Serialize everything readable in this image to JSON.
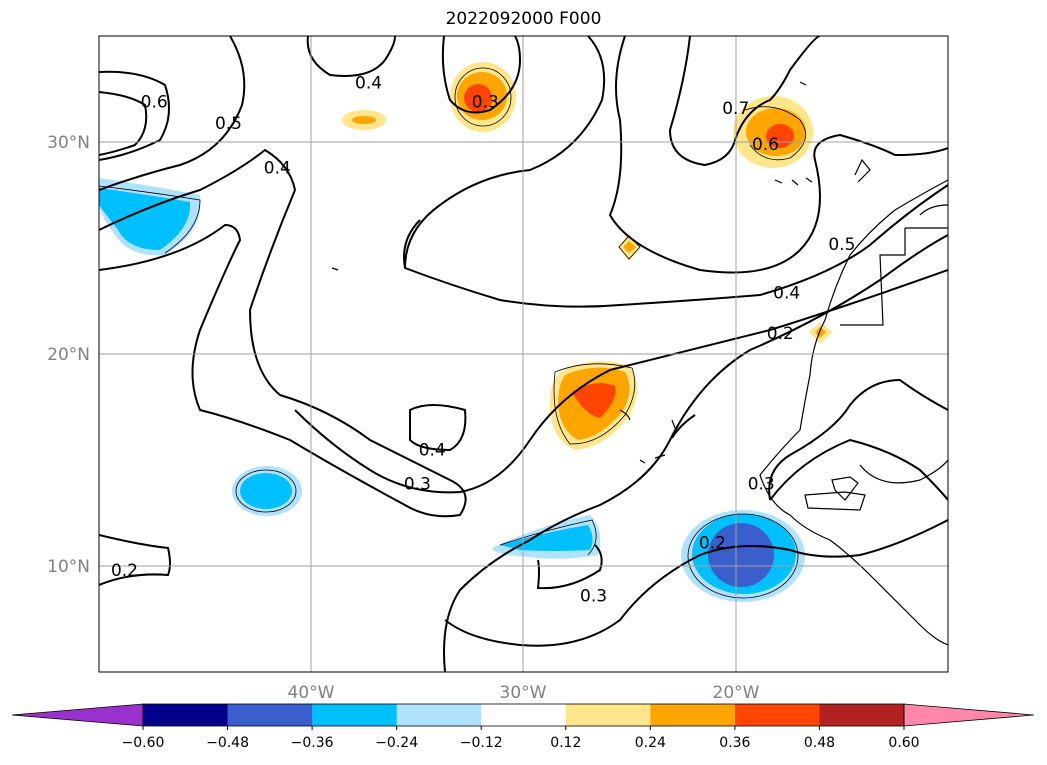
{
  "title": "2022092000 F000",
  "map": {
    "lon_labels": [
      {
        "lon": -40,
        "label": "40°W"
      },
      {
        "lon": -30,
        "label": "30°W"
      },
      {
        "lon": -20,
        "label": "20°W"
      }
    ],
    "lat_labels": [
      {
        "lat": 30,
        "label": "30°N"
      },
      {
        "lat": 20,
        "label": "20°N"
      },
      {
        "lat": 10,
        "label": "10°N"
      }
    ],
    "extent": {
      "lon_min": -50,
      "lon_max": -10,
      "lat_min": 5,
      "lat_max": 35
    },
    "grid": true,
    "contour_labels": [
      {
        "value": "0.4",
        "lon": -37.3,
        "lat": 32.8
      },
      {
        "value": "0.3",
        "lon": -31.8,
        "lat": 31.9
      },
      {
        "value": "0.6",
        "lon": -47.4,
        "lat": 31.9
      },
      {
        "value": "0.5",
        "lon": -43.9,
        "lat": 30.9
      },
      {
        "value": "0.4",
        "lon": -41.6,
        "lat": 28.8
      },
      {
        "value": "0.7",
        "lon": -20.0,
        "lat": 31.6
      },
      {
        "value": "0.6",
        "lon": -18.6,
        "lat": 29.9
      },
      {
        "value": "0.5",
        "lon": -15.0,
        "lat": 25.2
      },
      {
        "value": "0.4",
        "lon": -17.6,
        "lat": 22.9
      },
      {
        "value": "0.2",
        "lon": -17.9,
        "lat": 21.0
      },
      {
        "value": "0.4",
        "lon": -34.3,
        "lat": 15.5
      },
      {
        "value": "0.3",
        "lon": -35.0,
        "lat": 13.9
      },
      {
        "value": "0.3",
        "lon": -18.8,
        "lat": 13.9
      },
      {
        "value": "0.2",
        "lon": -21.1,
        "lat": 11.1
      },
      {
        "value": "0.2",
        "lon": -48.8,
        "lat": 9.8
      },
      {
        "value": "0.3",
        "lon": -26.7,
        "lat": 8.6
      }
    ]
  },
  "colorbar": {
    "ticks": [
      "−0.60",
      "−0.48",
      "−0.36",
      "−0.24",
      "−0.12",
      "0.12",
      "0.24",
      "0.36",
      "0.48",
      "0.60"
    ],
    "colors": [
      "#9932cc",
      "#00008b",
      "#3a5fcd",
      "#00bfff",
      "#b0e2ff",
      "#ffffff",
      "#ffe68c",
      "#ffa500",
      "#ff4500",
      "#b22222",
      "#ff88aa"
    ]
  }
}
